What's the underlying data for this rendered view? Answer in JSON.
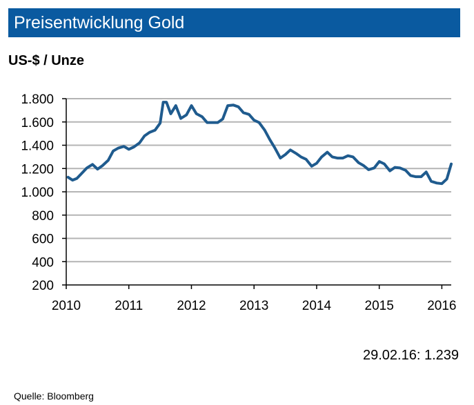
{
  "header": {
    "title": "Preisentwicklung Gold",
    "unit": "US-$ / Unze"
  },
  "annotation": "29.02.16:  1.239",
  "source": "Quelle:  Bloomberg",
  "colors": {
    "title_bar": "#0a5aa0",
    "series_line": "#1f5b8e",
    "grid": "#b4b4b4"
  },
  "chart_data": {
    "type": "line",
    "title": "Preisentwicklung Gold",
    "ylabel": "US-$ / Unze",
    "xlabel": "",
    "ylim": [
      200,
      1800
    ],
    "xlim": [
      2010.0,
      2016.15
    ],
    "grid": true,
    "y_ticks": [
      200,
      400,
      600,
      800,
      1000,
      1200,
      1400,
      1600,
      1800
    ],
    "y_tick_labels": [
      "200",
      "400",
      "600",
      "800",
      "1.000",
      "1.200",
      "1.400",
      "1.600",
      "1.800"
    ],
    "x_ticks": [
      2010,
      2011,
      2012,
      2013,
      2014,
      2015,
      2016
    ],
    "x_tick_labels": [
      "2010",
      "2011",
      "2012",
      "2013",
      "2014",
      "2015",
      "2016"
    ],
    "series": [
      {
        "x": [
          2010.03,
          2010.1,
          2010.17,
          2010.25,
          2010.33,
          2010.42,
          2010.5,
          2010.58,
          2010.67,
          2010.75,
          2010.83,
          2010.92,
          2011.0,
          2011.08,
          2011.17,
          2011.25,
          2011.33,
          2011.42,
          2011.5,
          2011.55,
          2011.6,
          2011.67,
          2011.75,
          2011.83,
          2011.92,
          2012.0,
          2012.08,
          2012.17,
          2012.25,
          2012.33,
          2012.42,
          2012.5,
          2012.58,
          2012.67,
          2012.75,
          2012.83,
          2012.92,
          2013.0,
          2013.08,
          2013.17,
          2013.25,
          2013.33,
          2013.42,
          2013.5,
          2013.58,
          2013.67,
          2013.75,
          2013.83,
          2013.92,
          2014.0,
          2014.08,
          2014.17,
          2014.25,
          2014.33,
          2014.42,
          2014.5,
          2014.58,
          2014.67,
          2014.75,
          2014.83,
          2014.92,
          2015.0,
          2015.08,
          2015.17,
          2015.25,
          2015.33,
          2015.42,
          2015.5,
          2015.58,
          2015.67,
          2015.75,
          2015.83,
          2015.92,
          2016.0,
          2016.08,
          2016.15
        ],
        "y": [
          1125,
          1100,
          1115,
          1160,
          1205,
          1235,
          1195,
          1225,
          1270,
          1350,
          1375,
          1390,
          1365,
          1385,
          1420,
          1480,
          1510,
          1530,
          1590,
          1770,
          1770,
          1670,
          1740,
          1630,
          1660,
          1740,
          1670,
          1645,
          1595,
          1595,
          1595,
          1625,
          1740,
          1745,
          1730,
          1680,
          1665,
          1615,
          1595,
          1530,
          1450,
          1380,
          1290,
          1320,
          1360,
          1330,
          1300,
          1280,
          1220,
          1245,
          1300,
          1340,
          1300,
          1290,
          1290,
          1310,
          1300,
          1250,
          1225,
          1190,
          1205,
          1260,
          1240,
          1180,
          1210,
          1205,
          1185,
          1140,
          1130,
          1130,
          1170,
          1090,
          1075,
          1070,
          1110,
          1239
        ]
      }
    ]
  }
}
